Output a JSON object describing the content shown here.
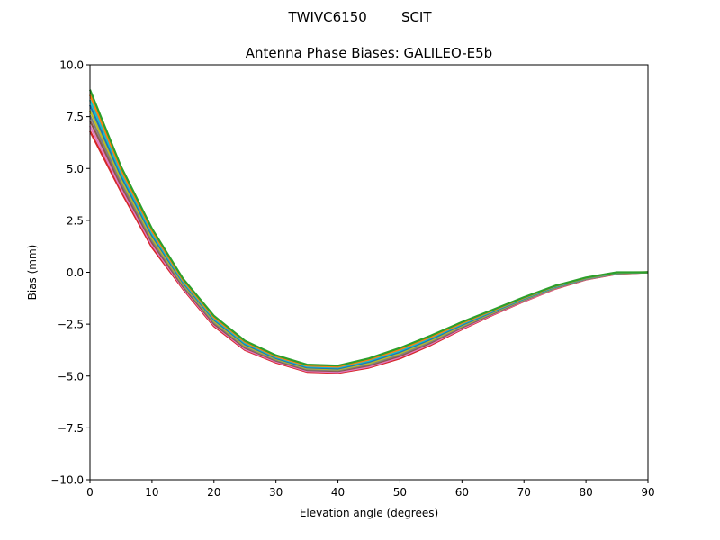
{
  "chart_data": {
    "type": "line",
    "suptitle": "TWIVC6150        SCIT",
    "title": "Antenna Phase Biases: GALILEO-E5b",
    "xlabel": "Elevation angle (degrees)",
    "ylabel": "Bias (mm)",
    "xlim": [
      0,
      90
    ],
    "ylim": [
      -10,
      10
    ],
    "xticks": [
      "0",
      "10",
      "20",
      "30",
      "40",
      "50",
      "60",
      "70",
      "80",
      "90"
    ],
    "yticks": [
      "−10.0",
      "−7.5",
      "−5.0",
      "−2.5",
      "0.0",
      "2.5",
      "5.0",
      "7.5",
      "10.0"
    ],
    "grid": false,
    "x": [
      0,
      5,
      10,
      15,
      20,
      25,
      30,
      35,
      40,
      45,
      50,
      55,
      60,
      65,
      70,
      75,
      80,
      85,
      90
    ],
    "series": [
      {
        "color": "#d62728",
        "values": [
          6.8,
          3.9,
          1.2,
          -0.8,
          -2.6,
          -3.75,
          -4.35,
          -4.8,
          -4.85,
          -4.6,
          -4.15,
          -3.5,
          -2.75,
          -2.05,
          -1.4,
          -0.8,
          -0.35,
          -0.08,
          0
        ]
      },
      {
        "color": "#e377c2",
        "values": [
          7.05,
          4.05,
          1.32,
          -0.74,
          -2.54,
          -3.7,
          -4.31,
          -4.76,
          -4.81,
          -4.55,
          -4.09,
          -3.45,
          -2.71,
          -2.02,
          -1.38,
          -0.78,
          -0.34,
          -0.07,
          0
        ]
      },
      {
        "color": "#8c564b",
        "values": [
          7.3,
          4.2,
          1.43,
          -0.68,
          -2.48,
          -3.64,
          -4.26,
          -4.71,
          -4.76,
          -4.49,
          -4.03,
          -3.39,
          -2.66,
          -1.99,
          -1.35,
          -0.76,
          -0.33,
          -0.06,
          0
        ]
      },
      {
        "color": "#7f7f7f",
        "values": [
          7.55,
          4.35,
          1.54,
          -0.62,
          -2.42,
          -3.59,
          -4.22,
          -4.67,
          -4.72,
          -4.44,
          -3.97,
          -3.34,
          -2.62,
          -1.96,
          -1.33,
          -0.75,
          -0.32,
          -0.05,
          0
        ]
      },
      {
        "color": "#bcbd22",
        "values": [
          7.8,
          4.5,
          1.65,
          -0.55,
          -2.35,
          -3.53,
          -4.18,
          -4.63,
          -4.68,
          -4.38,
          -3.9,
          -3.28,
          -2.58,
          -1.93,
          -1.3,
          -0.73,
          -0.3,
          -0.04,
          0
        ]
      },
      {
        "color": "#1f77b4",
        "values": [
          8.05,
          4.65,
          1.77,
          -0.49,
          -2.29,
          -3.47,
          -4.14,
          -4.59,
          -4.64,
          -4.32,
          -3.84,
          -3.22,
          -2.54,
          -1.9,
          -1.28,
          -0.71,
          -0.29,
          -0.03,
          0
        ]
      },
      {
        "color": "#17becf",
        "values": [
          8.3,
          4.8,
          1.88,
          -0.43,
          -2.23,
          -3.41,
          -4.09,
          -4.54,
          -4.59,
          -4.26,
          -3.78,
          -3.16,
          -2.49,
          -1.86,
          -1.25,
          -0.69,
          -0.28,
          -0.02,
          0
        ]
      },
      {
        "color": "#ff7f0e",
        "values": [
          8.55,
          4.95,
          1.99,
          -0.37,
          -2.17,
          -3.36,
          -4.05,
          -4.5,
          -4.55,
          -4.21,
          -3.72,
          -3.11,
          -2.45,
          -1.83,
          -1.23,
          -0.67,
          -0.27,
          -0.01,
          0
        ]
      },
      {
        "color": "#2ca02c",
        "values": [
          8.8,
          5.1,
          2.1,
          -0.3,
          -2.1,
          -3.3,
          -4.0,
          -4.45,
          -4.5,
          -4.15,
          -3.65,
          -3.05,
          -2.4,
          -1.8,
          -1.2,
          -0.65,
          -0.25,
          0,
          0
        ]
      }
    ]
  }
}
